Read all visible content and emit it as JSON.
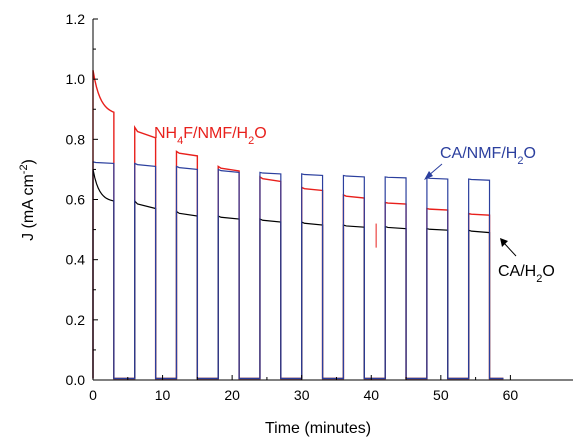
{
  "chart_data": {
    "type": "line",
    "xlabel": "Time (minutes)",
    "ylabel": {
      "main": "J (mA cm",
      "sup": "-2",
      "tail": ")"
    },
    "xlim": [
      0,
      69
    ],
    "ylim": [
      0,
      1.2
    ],
    "xticks": [
      0,
      10,
      20,
      30,
      40,
      50,
      60
    ],
    "yticks": [
      0.0,
      0.2,
      0.4,
      0.6,
      0.8,
      1.0,
      1.2
    ],
    "ytick_labels": [
      "0.0",
      "0.2",
      "0.4",
      "0.6",
      "0.8",
      "1.0",
      "1.2"
    ],
    "xtick_labels": [
      "0",
      "10",
      "20",
      "30",
      "40",
      "50",
      "60"
    ],
    "grid": false,
    "legend": "none",
    "dark_current": 0.005,
    "series": [
      {
        "name": "NH4F/NMF/H2O",
        "color": "#e8201c",
        "label": {
          "a": "NH",
          "sub1": "4",
          "b": "F/NMF/H",
          "sub2": "2",
          "c": "O"
        },
        "on_periods": [
          [
            0,
            3,
            1.03,
            0.89
          ],
          [
            6,
            9,
            0.84,
            0.805
          ],
          [
            12,
            15,
            0.76,
            0.745
          ],
          [
            18,
            21,
            0.71,
            0.695
          ],
          [
            24,
            27,
            0.675,
            0.66
          ],
          [
            30,
            33,
            0.64,
            0.63
          ],
          [
            36,
            39,
            0.615,
            0.605
          ],
          [
            42,
            45,
            0.59,
            0.585
          ],
          [
            48,
            51,
            0.57,
            0.565
          ],
          [
            54,
            57,
            0.553,
            0.548
          ]
        ]
      },
      {
        "name": "CA/NMF/H2O",
        "color": "#2b3f9e",
        "label": {
          "a": "CA/NMF/H",
          "sub1": "2",
          "b": "O"
        },
        "on_periods": [
          [
            0,
            3,
            0.725,
            0.72
          ],
          [
            6,
            9,
            0.72,
            0.71
          ],
          [
            12,
            15,
            0.71,
            0.7
          ],
          [
            18,
            21,
            0.7,
            0.69
          ],
          [
            24,
            27,
            0.69,
            0.685
          ],
          [
            30,
            33,
            0.685,
            0.68
          ],
          [
            36,
            39,
            0.68,
            0.675
          ],
          [
            42,
            45,
            0.675,
            0.672
          ],
          [
            48,
            51,
            0.672,
            0.668
          ],
          [
            54,
            57,
            0.668,
            0.664
          ]
        ]
      },
      {
        "name": "CA/H2O",
        "color": "#000000",
        "label": {
          "a": "CA/H",
          "sub1": "2",
          "b": "O"
        },
        "on_periods": [
          [
            0,
            3,
            0.7,
            0.595
          ],
          [
            6,
            9,
            0.595,
            0.57
          ],
          [
            12,
            15,
            0.56,
            0.545
          ],
          [
            18,
            21,
            0.545,
            0.535
          ],
          [
            24,
            27,
            0.535,
            0.525
          ],
          [
            30,
            33,
            0.525,
            0.515
          ],
          [
            36,
            39,
            0.515,
            0.508
          ],
          [
            42,
            45,
            0.51,
            0.503
          ],
          [
            48,
            51,
            0.503,
            0.498
          ],
          [
            54,
            57,
            0.498,
            0.49
          ]
        ]
      }
    ]
  }
}
